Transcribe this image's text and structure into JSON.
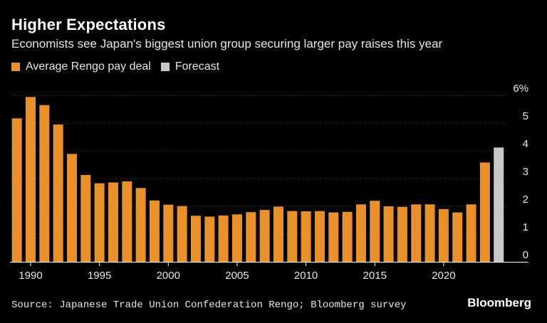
{
  "title": "Higher Expectations",
  "subtitle": "Economists see Japan's biggest union group securing larger pay raises this year",
  "legend": [
    {
      "label": "Average Rengo pay deal",
      "color": "#e8902a"
    },
    {
      "label": "Forecast",
      "color": "#c8c8c8"
    }
  ],
  "source": "Source: Japanese Trade Union Confederation Rengo; Bloomberg survey",
  "brand": "Bloomberg",
  "chart_data": {
    "type": "bar",
    "y_axis_side": "right",
    "ylim": [
      0,
      6
    ],
    "yticks": [
      0,
      1,
      2,
      3,
      4,
      5,
      6
    ],
    "ytick_labels": [
      "0",
      "1",
      "2",
      "3",
      "4",
      "5",
      "6%"
    ],
    "xticks": [
      1990,
      1995,
      2000,
      2005,
      2010,
      2015,
      2020
    ],
    "grid": true,
    "series": [
      {
        "name": "Average Rengo pay deal",
        "color": "#e8902a",
        "x": [
          1989,
          1990,
          1991,
          1992,
          1993,
          1994,
          1995,
          1996,
          1997,
          1998,
          1999,
          2000,
          2001,
          2002,
          2003,
          2004,
          2005,
          2006,
          2007,
          2008,
          2009,
          2010,
          2011,
          2012,
          2013,
          2014,
          2015,
          2016,
          2017,
          2018,
          2019,
          2020,
          2021,
          2022,
          2023
        ],
        "values": [
          5.17,
          5.94,
          5.65,
          4.95,
          3.89,
          3.13,
          2.83,
          2.86,
          2.9,
          2.66,
          2.21,
          2.06,
          2.01,
          1.66,
          1.63,
          1.67,
          1.71,
          1.79,
          1.87,
          1.99,
          1.83,
          1.82,
          1.83,
          1.78,
          1.8,
          2.07,
          2.2,
          2.0,
          1.98,
          2.07,
          2.07,
          1.9,
          1.78,
          2.07,
          3.58
        ]
      },
      {
        "name": "Forecast",
        "color": "#c8c8c8",
        "x": [
          2024
        ],
        "values": [
          4.12
        ]
      }
    ]
  }
}
